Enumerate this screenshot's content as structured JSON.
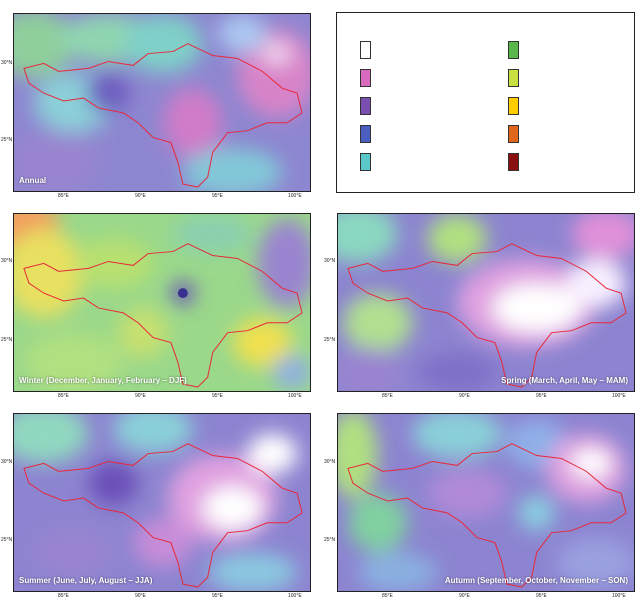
{
  "panels": [
    {
      "id": "annual",
      "title": "Annual",
      "lat_ticks": [
        "30°N",
        "25°N"
      ],
      "lon_ticks": [
        "85°E",
        "90°E",
        "95°E",
        "100°E"
      ]
    },
    {
      "id": "winter",
      "title": "Winter (December, January, February – DJF)",
      "lat_ticks": [
        "30°N",
        "25°N"
      ],
      "lon_ticks": [
        "85°E",
        "90°E",
        "95°E",
        "100°E"
      ]
    },
    {
      "id": "spring",
      "title": "Spring (March, April, May – MAM)",
      "lat_ticks": [
        "30°N",
        "25°N"
      ],
      "lon_ticks": [
        "85°E",
        "90°E",
        "95°E",
        "100°E"
      ]
    },
    {
      "id": "summer",
      "title": "Summer (June, July, August – JJA)",
      "lat_ticks": [
        "30°N",
        "25°N"
      ],
      "lon_ticks": [
        "85°E",
        "90°E",
        "95°E",
        "100°E"
      ]
    },
    {
      "id": "autumn",
      "title": "Autumn (September, October, November – SON)",
      "lat_ticks": [
        "30°N",
        "25°N"
      ],
      "lon_ticks": [
        "85°E",
        "90°E",
        "95°E",
        "100°E"
      ]
    }
  ],
  "legend": {
    "left_swatches": [
      "#ffffff",
      "#d86bc0",
      "#7a4fb0",
      "#4a5fc0",
      "#5ac8c8"
    ],
    "right_swatches": [
      "#5ab84a",
      "#c8e040",
      "#ffcc00",
      "#e0661a",
      "#8a1010"
    ]
  },
  "colors": {
    "boundary": "#e8283a",
    "frame": "#222222"
  }
}
